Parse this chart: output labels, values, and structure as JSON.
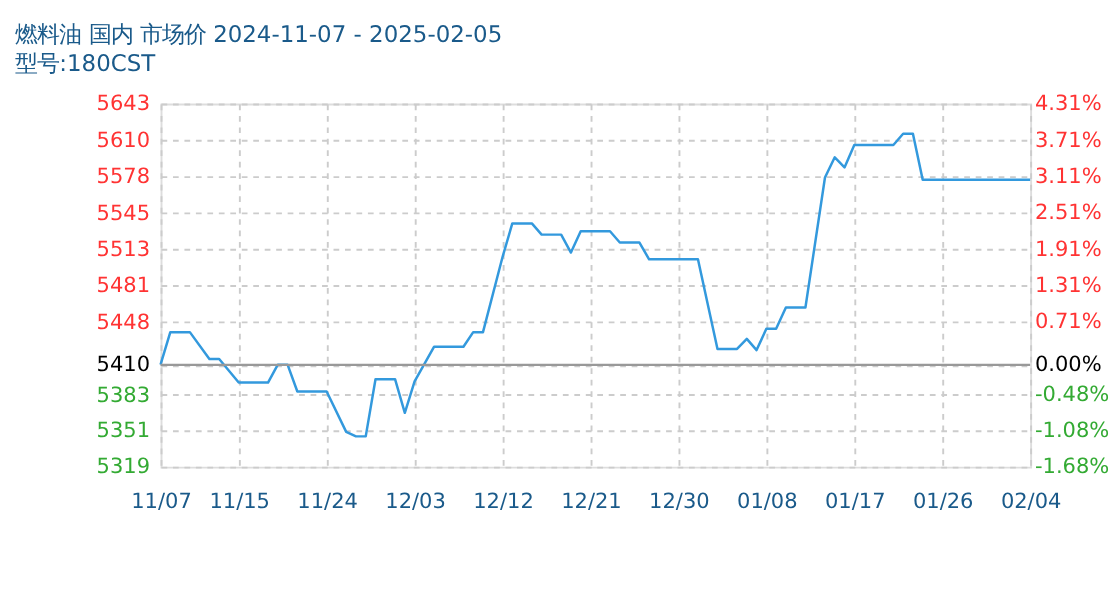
{
  "chart_data": {
    "type": "line",
    "title": "燃料油 国内 市场价 2024-11-07 - 2025-02-05",
    "subtitle": "型号:180CST",
    "x": [
      "2024-11-07",
      "2024-11-08",
      "2024-11-10",
      "2024-11-12",
      "2024-11-13",
      "2024-11-15",
      "2024-11-18",
      "2024-11-19",
      "2024-11-20",
      "2024-11-21",
      "2024-11-24",
      "2024-11-26",
      "2024-11-27",
      "2024-11-28",
      "2024-11-29",
      "2024-12-01",
      "2024-12-02",
      "2024-12-03",
      "2024-12-05",
      "2024-12-08",
      "2024-12-09",
      "2024-12-10",
      "2024-12-12",
      "2024-12-13",
      "2024-12-15",
      "2024-12-16",
      "2024-12-18",
      "2024-12-19",
      "2024-12-20",
      "2024-12-23",
      "2024-12-24",
      "2024-12-26",
      "2024-12-27",
      "2025-01-01",
      "2025-01-03",
      "2025-01-05",
      "2025-01-06",
      "2025-01-07",
      "2025-01-08",
      "2025-01-09",
      "2025-01-10",
      "2025-01-12",
      "2025-01-14",
      "2025-01-15",
      "2025-01-16",
      "2025-01-17",
      "2025-01-21",
      "2025-01-22",
      "2025-01-23",
      "2025-01-24",
      "2025-02-04"
    ],
    "series": [
      {
        "color": "#3399dd",
        "values": [
          5410,
          5439,
          5439,
          5415,
          5415,
          5394,
          5394,
          5410,
          5410,
          5386,
          5386,
          5350,
          5346,
          5346,
          5397,
          5397,
          5367,
          5395,
          5426,
          5426,
          5439,
          5439,
          5506,
          5536,
          5536,
          5526,
          5526,
          5510,
          5529,
          5529,
          5519,
          5519,
          5504,
          5504,
          5424,
          5424,
          5433,
          5423,
          5442,
          5442,
          5461,
          5461,
          5577,
          5595,
          5586,
          5606,
          5606,
          5616,
          5616,
          5575,
          5575
        ]
      }
    ],
    "xlim": [
      "2024-11-07",
      "2025-02-04"
    ],
    "xticks": [
      {
        "value": "2024-11-07",
        "label": "11/07"
      },
      {
        "value": "2024-11-15",
        "label": "11/15"
      },
      {
        "value": "2024-11-24",
        "label": "11/24"
      },
      {
        "value": "2024-12-03",
        "label": "12/03"
      },
      {
        "value": "2024-12-12",
        "label": "12/12"
      },
      {
        "value": "2024-12-21",
        "label": "12/21"
      },
      {
        "value": "2024-12-30",
        "label": "12/30"
      },
      {
        "value": "2025-01-08",
        "label": "01/08"
      },
      {
        "value": "2025-01-17",
        "label": "01/17"
      },
      {
        "value": "2025-01-26",
        "label": "01/26"
      },
      {
        "value": "2025-02-04",
        "label": "02/04"
      }
    ],
    "ylim": [
      5319,
      5643
    ],
    "yticks": [
      5319,
      5351,
      5383,
      5410,
      5448,
      5481,
      5513,
      5545,
      5578,
      5610,
      5643
    ],
    "y2lim": [
      -1.68,
      4.31
    ],
    "y2ticks": [
      {
        "value": -1.68,
        "label": "-1.68%"
      },
      {
        "value": -1.08,
        "label": "-1.08%"
      },
      {
        "value": -0.48,
        "label": "-0.48%"
      },
      {
        "value": 0,
        "label": "0.00%"
      },
      {
        "value": 0.71,
        "label": "0.71%"
      },
      {
        "value": 1.31,
        "label": "1.31%"
      },
      {
        "value": 1.91,
        "label": "1.91%"
      },
      {
        "value": 2.51,
        "label": "2.51%"
      },
      {
        "value": 3.11,
        "label": "3.11%"
      },
      {
        "value": 3.71,
        "label": "3.71%"
      },
      {
        "value": 4.31,
        "label": "4.31%"
      }
    ],
    "ref_lines": [
      {
        "axis": "y2",
        "value": 0,
        "color": "#999999"
      }
    ],
    "grid": true,
    "marker": "none",
    "line_style": "solid"
  }
}
